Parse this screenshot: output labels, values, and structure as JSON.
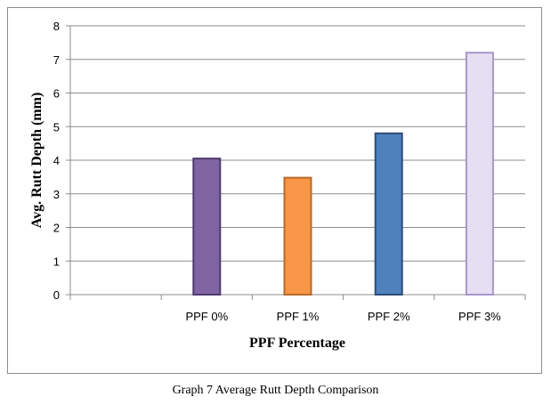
{
  "chart_data": {
    "type": "bar",
    "categories": [
      "",
      "PPF 0%",
      "PPF 1%",
      "PPF 2%",
      "PPF 3%"
    ],
    "values": [
      null,
      4.05,
      3.48,
      4.8,
      7.2
    ],
    "title": "",
    "xlabel": "PPF Percentage",
    "ylabel": "Avg. Rutt Depth (mm)",
    "ylim": [
      0,
      8
    ],
    "yticks": [
      "0",
      "1",
      "2",
      "3",
      "4",
      "5",
      "6",
      "7",
      "8"
    ],
    "grid": true,
    "legend": "none"
  },
  "bar_styles": [
    null,
    {
      "fill": "#8064a2",
      "stroke": "#4f3a6e"
    },
    {
      "fill": "#f79646",
      "stroke": "#b86a2a"
    },
    {
      "fill": "#4f81bd",
      "stroke": "#2c4d78"
    },
    {
      "fill": "#e6dff3",
      "stroke": "#a896c8"
    }
  ],
  "caption": "Graph 7 Average Rutt Depth Comparison"
}
